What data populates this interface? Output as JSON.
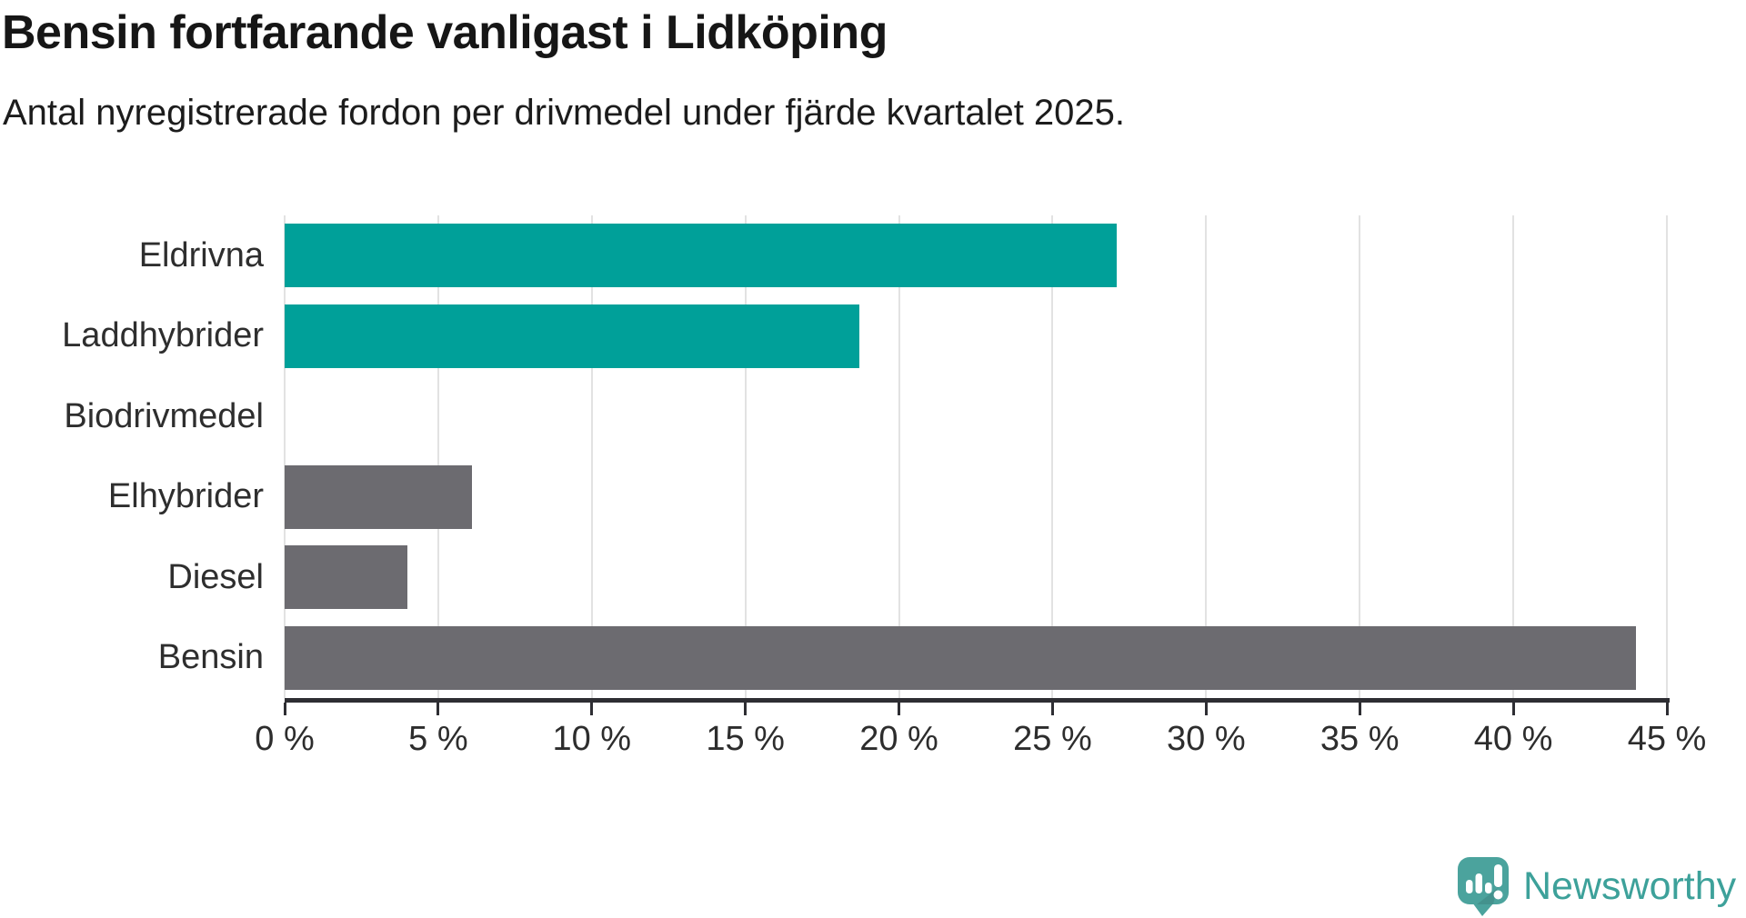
{
  "header": {
    "title": "Bensin fortfarande vanligast i Lidköping",
    "subtitle": "Antal nyregistrerade fordon per drivmedel under fjärde kvartalet 2025."
  },
  "chart_data": {
    "type": "bar",
    "orientation": "horizontal",
    "title": "Bensin fortfarande vanligast i Lidköping",
    "subtitle": "Antal nyregistrerade fordon per drivmedel under fjärde kvartalet 2025.",
    "categories": [
      "Eldrivna",
      "Laddhybrider",
      "Biodrivmedel",
      "Elhybrider",
      "Diesel",
      "Bensin"
    ],
    "values": [
      27.1,
      18.7,
      0,
      6.1,
      4.0,
      44.0
    ],
    "unit": "%",
    "xlim": [
      0,
      45
    ],
    "x_tick_values": [
      0,
      5,
      10,
      15,
      20,
      25,
      30,
      35,
      40,
      45
    ],
    "x_ticks": [
      "0 %",
      "5 %",
      "10 %",
      "15 %",
      "20 %",
      "25 %",
      "30 %",
      "35 %",
      "40 %",
      "45 %"
    ],
    "bar_colors": [
      "#00a099",
      "#00a099",
      "#00a099",
      "#6c6b70",
      "#6c6b70",
      "#6c6b70"
    ],
    "grid": true,
    "legend": false
  },
  "colors": {
    "teal": "#00a099",
    "gray": "#6c6b70",
    "grid": "#e2e2e2",
    "axis": "#2e2e33",
    "text": "#2e2e2e",
    "logo": "#3da19a",
    "logo_icon": "#4ba39d"
  },
  "footer": {
    "brand": "Newsworthy"
  }
}
